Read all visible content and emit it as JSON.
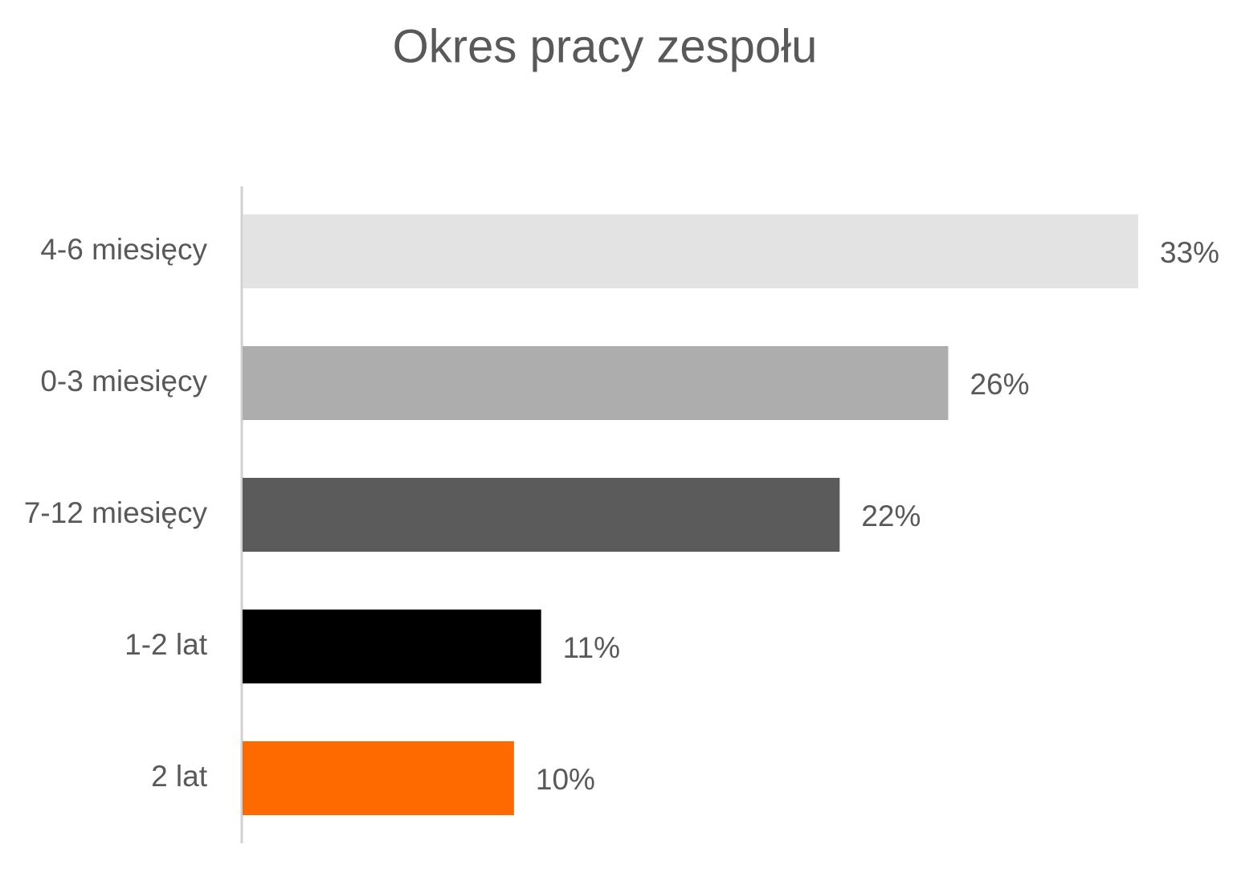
{
  "chart_data": {
    "type": "bar",
    "orientation": "horizontal",
    "title": "Okres pracy zespołu",
    "categories": [
      "4-6 miesięcy",
      "0-3 miesięcy",
      "7-12 miesięcy",
      "1-2 lat",
      "2 lat"
    ],
    "values": [
      33,
      26,
      22,
      11,
      10
    ],
    "value_labels": [
      "33%",
      "26%",
      "22%",
      "11%",
      "10%"
    ],
    "colors": [
      "#e3e3e3",
      "#adadad",
      "#5b5b5b",
      "#000000",
      "#ff6a00"
    ]
  }
}
